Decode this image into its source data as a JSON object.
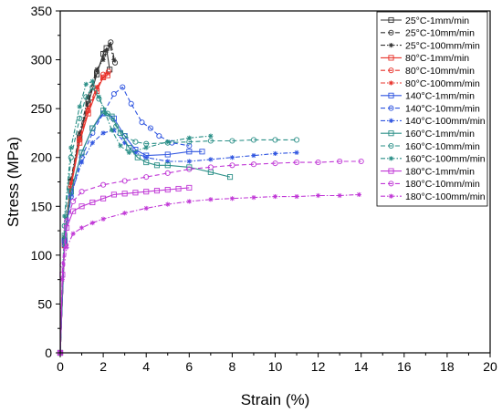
{
  "chart_data": {
    "type": "line",
    "xlabel": "Strain (%)",
    "ylabel": "Stress (MPa)",
    "xlim": [
      0,
      20
    ],
    "ylim": [
      0,
      350
    ],
    "xticks": [
      0,
      2,
      4,
      6,
      8,
      10,
      12,
      14,
      16,
      18,
      20
    ],
    "yticks": [
      0,
      50,
      100,
      150,
      200,
      250,
      300,
      350
    ],
    "grid": false,
    "legend_position": "top-right",
    "series": [
      {
        "name": "25°C-1mm/min",
        "color": "#333333",
        "marker": "square",
        "dash": "solid",
        "x": [
          0,
          0.2,
          0.5,
          0.9,
          1.3,
          1.7,
          2.0,
          2.15,
          2.3
        ],
        "y": [
          0,
          115,
          175,
          220,
          255,
          285,
          306,
          312,
          290
        ]
      },
      {
        "name": "25°C-10mm/min",
        "color": "#333333",
        "marker": "circle",
        "dash": "dash",
        "x": [
          0,
          0.2,
          0.5,
          0.9,
          1.3,
          1.7,
          2.1,
          2.35,
          2.55
        ],
        "y": [
          0,
          115,
          175,
          222,
          258,
          288,
          308,
          318,
          297
        ]
      },
      {
        "name": "25°C-100mm/min",
        "color": "#333333",
        "marker": "star",
        "dash": "dashdot",
        "x": [
          0,
          0.2,
          0.5,
          0.9,
          1.3,
          1.7,
          2.0,
          2.3,
          2.5
        ],
        "y": [
          0,
          118,
          178,
          225,
          262,
          290,
          300,
          315,
          300
        ]
      },
      {
        "name": "80°C-1mm/min",
        "color": "#e8342c",
        "marker": "square",
        "dash": "solid",
        "x": [
          0,
          0.2,
          0.5,
          0.9,
          1.3,
          1.7,
          2.0,
          2.2
        ],
        "y": [
          0,
          110,
          170,
          215,
          245,
          268,
          282,
          284
        ]
      },
      {
        "name": "80°C-10mm/min",
        "color": "#e8342c",
        "marker": "circle",
        "dash": "dash",
        "x": [
          0,
          0.2,
          0.5,
          0.9,
          1.3,
          1.7,
          2.0,
          2.25
        ],
        "y": [
          0,
          112,
          172,
          218,
          248,
          270,
          285,
          288
        ]
      },
      {
        "name": "80°C-100mm/min",
        "color": "#e8342c",
        "marker": "star",
        "dash": "dashdot",
        "x": [
          0,
          0.2,
          0.5,
          0.9,
          1.3,
          1.7,
          2.0,
          2.2
        ],
        "y": [
          0,
          114,
          174,
          220,
          250,
          272,
          282,
          286
        ]
      },
      {
        "name": "140°C-1mm/min",
        "color": "#2f55e0",
        "marker": "square",
        "dash": "solid",
        "x": [
          0,
          0.2,
          0.5,
          1.0,
          1.5,
          2.0,
          2.5,
          3.0,
          3.5,
          4.0,
          5.0,
          6.0,
          6.6
        ],
        "y": [
          0,
          115,
          165,
          205,
          230,
          245,
          240,
          222,
          208,
          202,
          203,
          206,
          206
        ]
      },
      {
        "name": "140°C-10mm/min",
        "color": "#2f55e0",
        "marker": "circle",
        "dash": "dash",
        "x": [
          0,
          0.2,
          0.5,
          1.0,
          1.5,
          2.0,
          2.5,
          2.9,
          3.3,
          3.8,
          4.2,
          4.6,
          5.2,
          6.0
        ],
        "y": [
          0,
          110,
          160,
          200,
          225,
          245,
          265,
          272,
          255,
          236,
          230,
          222,
          215,
          212
        ]
      },
      {
        "name": "140°C-100mm/min",
        "color": "#2f55e0",
        "marker": "star",
        "dash": "dashdot",
        "x": [
          0,
          0.2,
          0.5,
          1.0,
          1.5,
          2.0,
          2.5,
          3.0,
          3.5,
          4.0,
          5.0,
          6.0,
          7.0,
          8.0,
          9.0,
          10.0,
          11.0
        ],
        "y": [
          0,
          115,
          162,
          195,
          215,
          225,
          228,
          215,
          205,
          200,
          196,
          196,
          198,
          200,
          202,
          204,
          205
        ]
      },
      {
        "name": "160°C-1mm/min",
        "color": "#2a8f87",
        "marker": "square",
        "dash": "solid",
        "x": [
          0,
          0.2,
          0.5,
          1.0,
          1.5,
          2.0,
          2.4,
          2.8,
          3.2,
          3.6,
          4.0,
          4.5,
          5.0,
          6.0,
          7.0,
          7.9
        ],
        "y": [
          0,
          120,
          165,
          205,
          230,
          248,
          242,
          225,
          210,
          200,
          195,
          192,
          192,
          190,
          185,
          180
        ]
      },
      {
        "name": "160°C-10mm/min",
        "color": "#2a8f87",
        "marker": "circle",
        "dash": "dash",
        "x": [
          0,
          0.2,
          0.5,
          0.9,
          1.2,
          1.5,
          1.8,
          2.2,
          2.6,
          3.0,
          3.5,
          4.0,
          5.0,
          6.0,
          7.0,
          8.0,
          9.0,
          10.0,
          11.0
        ],
        "y": [
          0,
          130,
          200,
          240,
          262,
          272,
          260,
          245,
          232,
          222,
          216,
          214,
          215,
          216,
          217,
          217,
          218,
          218,
          218
        ]
      },
      {
        "name": "160°C-100mm/min",
        "color": "#2a8f87",
        "marker": "star",
        "dash": "dashdot",
        "x": [
          0,
          0.2,
          0.5,
          0.9,
          1.2,
          1.5,
          1.8,
          2.1,
          2.4,
          2.8,
          3.2,
          4.0,
          5.0,
          6.0,
          7.0
        ],
        "y": [
          0,
          140,
          210,
          252,
          275,
          278,
          262,
          245,
          228,
          212,
          205,
          210,
          216,
          220,
          222
        ]
      },
      {
        "name": "180°C-1mm/min",
        "color": "#c037d6",
        "marker": "square",
        "dash": "solid",
        "x": [
          0,
          0.1,
          0.3,
          0.6,
          1.0,
          1.5,
          2.0,
          2.5,
          3.0,
          3.5,
          4.0,
          4.5,
          5.0,
          5.5,
          6.0
        ],
        "y": [
          0,
          80,
          128,
          145,
          150,
          154,
          158,
          162,
          163,
          164,
          165,
          166,
          167,
          168,
          169
        ]
      },
      {
        "name": "180°C-10mm/min",
        "color": "#c037d6",
        "marker": "circle",
        "dash": "dash",
        "x": [
          0,
          0.1,
          0.3,
          0.6,
          1.0,
          2.0,
          3.0,
          4.0,
          5.0,
          6.0,
          7.0,
          8.0,
          9.0,
          10.0,
          11.0,
          12.0,
          13.0,
          14.0
        ],
        "y": [
          0,
          90,
          135,
          155,
          165,
          172,
          176,
          180,
          184,
          188,
          190,
          192,
          193,
          194,
          195,
          195,
          196,
          196
        ]
      },
      {
        "name": "180°C-100mm/min",
        "color": "#c037d6",
        "marker": "star",
        "dash": "dashdot",
        "x": [
          0,
          0.1,
          0.3,
          0.6,
          1.0,
          1.5,
          2.0,
          3.0,
          4.0,
          5.0,
          6.0,
          7.0,
          8.0,
          9.0,
          10.0,
          11.0,
          12.0,
          13.0,
          13.9
        ],
        "y": [
          0,
          75,
          108,
          122,
          128,
          133,
          137,
          143,
          148,
          152,
          155,
          157,
          158,
          159,
          160,
          160,
          161,
          161,
          162
        ]
      }
    ]
  }
}
